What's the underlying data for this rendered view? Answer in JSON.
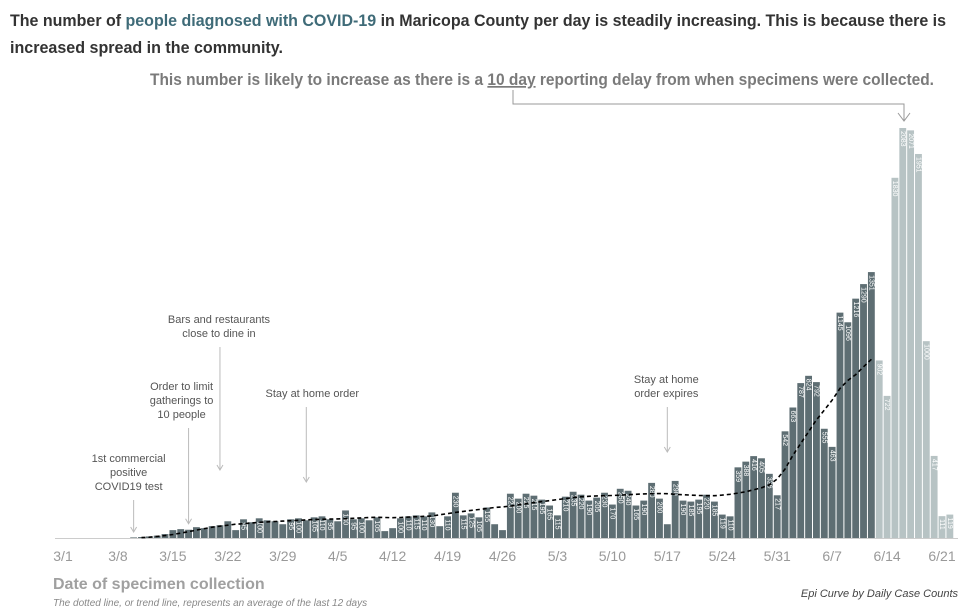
{
  "chart_data": {
    "type": "bar",
    "title": {
      "lines": [
        [
          "The number of ",
          "people diagnosed with COVID-19",
          " in Maricopa County per day is steadily increasing. This is because there is"
        ],
        [
          "increased spread in the community."
        ]
      ]
    },
    "subtitle": [
      "This number is likely to increase as there is a ",
      "10 day",
      " reporting delay from when specimens were collected."
    ],
    "x_label": "Date of specimen collection",
    "source": "Epi Curve by Daily Case Counts",
    "note": "The dotted line, or trend line, represents an average of the last 12 days",
    "annotations": [
      {
        "lines": [
          "1st commercial",
          "positive",
          "COVID19 test"
        ],
        "index": 9
      },
      {
        "lines": [
          "Order to limit",
          "gatherings to",
          "10 people"
        ],
        "index": 16
      },
      {
        "lines": [
          "Bars and restaurants",
          "close to dine in"
        ],
        "index": 20
      },
      {
        "lines": [
          "Stay at home order"
        ],
        "index": 31
      },
      {
        "lines": [
          "Stay at home",
          "order expires"
        ],
        "index": 77
      }
    ],
    "categories": [
      "3/1",
      null,
      null,
      null,
      null,
      null,
      null,
      "3/8",
      null,
      null,
      null,
      null,
      null,
      null,
      "3/15",
      null,
      null,
      null,
      null,
      null,
      null,
      "3/22",
      null,
      null,
      null,
      null,
      null,
      null,
      "3/29",
      null,
      null,
      null,
      null,
      null,
      null,
      "4/5",
      null,
      null,
      null,
      null,
      null,
      null,
      "4/12",
      null,
      null,
      null,
      null,
      null,
      null,
      "4/19",
      null,
      null,
      null,
      null,
      null,
      null,
      "4/26",
      null,
      null,
      null,
      null,
      null,
      null,
      "5/3",
      null,
      null,
      null,
      null,
      null,
      null,
      "5/10",
      null,
      null,
      null,
      null,
      null,
      null,
      "5/17",
      null,
      null,
      null,
      null,
      null,
      null,
      "5/24",
      null,
      null,
      null,
      null,
      null,
      null,
      "5/31",
      null,
      null,
      null,
      null,
      null,
      null,
      "6/7",
      null,
      null,
      null,
      null,
      null,
      null,
      "6/14",
      null,
      null,
      null,
      null,
      null,
      null,
      "6/21",
      null
    ],
    "series": [
      {
        "color": "#5e6e73",
        "values": [
          0,
          0,
          0,
          0,
          0,
          0,
          0,
          0,
          0,
          3,
          5,
          8,
          12,
          20,
          40,
          45,
          42,
          55,
          50,
          60,
          65,
          85,
          40,
          95,
          80,
          100,
          90,
          85,
          70,
          95,
          100,
          90,
          105,
          110,
          95,
          85,
          140,
          95,
          100,
          90,
          105,
          35,
          50,
          100,
          110,
          115,
          110,
          130,
          60,
          110,
          230,
          115,
          125,
          105,
          155,
          70,
          40,
          225,
          200,
          225,
          215,
          195,
          165,
          115,
          210,
          235,
          220,
          190,
          205,
          230,
          170,
          250,
          240,
          165,
          190,
          280,
          200,
          70,
          290,
          190,
          185,
          195,
          220,
          185,
          119,
          110,
          359,
          388,
          416,
          405,
          326,
          217,
          542,
          663,
          787,
          824,
          792,
          555,
          463,
          1145,
          1096,
          1216,
          1290,
          1351,
          null,
          null,
          null,
          null,
          null,
          null,
          null,
          null,
          null,
          null
        ]
      },
      {
        "color": "#b7c3c4",
        "values": [
          null,
          null,
          null,
          null,
          null,
          null,
          null,
          null,
          null,
          null,
          null,
          null,
          null,
          null,
          null,
          null,
          null,
          null,
          null,
          null,
          null,
          null,
          null,
          null,
          null,
          null,
          null,
          null,
          null,
          null,
          null,
          null,
          null,
          null,
          null,
          null,
          null,
          null,
          null,
          null,
          null,
          null,
          null,
          null,
          null,
          null,
          null,
          null,
          null,
          null,
          null,
          null,
          null,
          null,
          null,
          null,
          null,
          null,
          null,
          null,
          null,
          null,
          null,
          null,
          null,
          null,
          null,
          null,
          null,
          null,
          null,
          null,
          null,
          null,
          null,
          null,
          null,
          null,
          null,
          null,
          null,
          null,
          null,
          null,
          null,
          null,
          null,
          null,
          null,
          null,
          null,
          null,
          null,
          null,
          null,
          null,
          null,
          null,
          null,
          null,
          null,
          null,
          null,
          null,
          902,
          722,
          1830,
          2083,
          2071,
          1951,
          1000,
          417,
          111,
          119
        ]
      }
    ],
    "trend": {
      "color": "#000000",
      "dashed": true,
      "values": [
        null,
        null,
        null,
        null,
        null,
        null,
        null,
        null,
        null,
        null,
        2,
        4,
        8,
        12,
        18,
        25,
        32,
        40,
        48,
        55,
        60,
        65,
        70,
        72,
        76,
        80,
        82,
        84,
        86,
        88,
        90,
        92,
        94,
        95,
        96,
        97,
        98,
        100,
        102,
        104,
        105,
        104,
        103,
        104,
        106,
        108,
        110,
        112,
        118,
        124,
        130,
        135,
        140,
        145,
        150,
        155,
        158,
        162,
        168,
        174,
        180,
        185,
        190,
        195,
        200,
        205,
        210,
        212,
        214,
        215,
        216,
        218,
        220,
        222,
        224,
        225,
        226,
        225,
        222,
        220,
        218,
        216,
        215,
        215,
        218,
        222,
        228,
        235,
        245,
        255,
        270,
        300,
        350,
        420,
        480,
        540,
        600,
        650,
        700,
        760,
        800,
        830,
        870,
        908,
        null,
        null,
        null,
        null,
        null,
        null,
        null,
        null,
        null,
        null
      ]
    }
  }
}
